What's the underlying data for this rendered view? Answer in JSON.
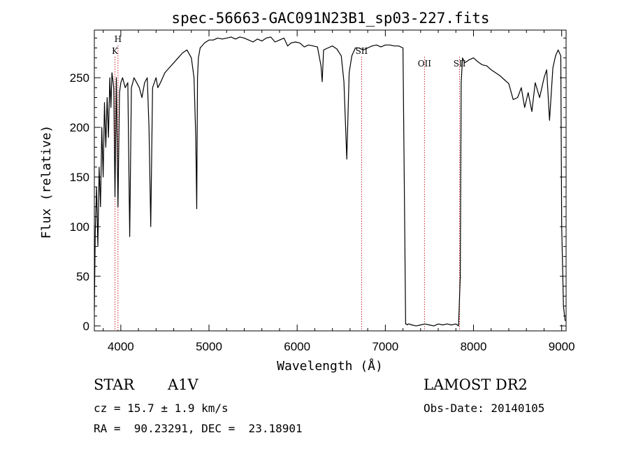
{
  "chart_data": {
    "type": "line",
    "title": "spec-56663-GAC091N23B1_sp03-227.fits",
    "xlabel": "Wavelength (Å)",
    "ylabel": "Flux (relative)",
    "xlim": [
      3700,
      9050
    ],
    "ylim": [
      -5,
      298
    ],
    "xticks": [
      4000,
      5000,
      6000,
      7000,
      8000,
      9000
    ],
    "xtick_labels": [
      "4000",
      "5000",
      "6000",
      "7000",
      "8000",
      "9000"
    ],
    "yticks": [
      0,
      50,
      100,
      150,
      200,
      250
    ],
    "ytick_labels": [
      "0",
      "50",
      "100",
      "150",
      "200",
      "250"
    ],
    "grid": false,
    "line_color": "#000000",
    "marker_color": "#cc2222",
    "lines": [
      {
        "wavelength": 3934,
        "label": "K",
        "label_row": 2
      },
      {
        "wavelength": 3968,
        "label": "H",
        "label_row": 1
      },
      {
        "wavelength": 6731,
        "label": "SII",
        "label_row": 2
      },
      {
        "wavelength": 7444,
        "label": "OII",
        "label_row": 3
      },
      {
        "wavelength": 7842,
        "label": "SII",
        "label_row": 3
      }
    ],
    "series": [
      {
        "x": [
          3700,
          3710,
          3725,
          3740,
          3755,
          3770,
          3785,
          3800,
          3815,
          3830,
          3845,
          3860,
          3875,
          3888,
          3900,
          3920,
          3934,
          3950,
          3968,
          3985,
          4000,
          4020,
          4050,
          4080,
          4101,
          4120,
          4150,
          4180,
          4210,
          4240,
          4270,
          4300,
          4320,
          4340,
          4360,
          4380,
          4400,
          4420,
          4450,
          4500,
          4550,
          4600,
          4650,
          4700,
          4750,
          4800,
          4830,
          4850,
          4861,
          4870,
          4880,
          4900,
          4950,
          5000,
          5050,
          5100,
          5150,
          5200,
          5250,
          5300,
          5350,
          5400,
          5450,
          5500,
          5550,
          5600,
          5650,
          5700,
          5750,
          5800,
          5850,
          5892,
          5930,
          5980,
          6030,
          6080,
          6130,
          6180,
          6230,
          6270,
          6284,
          6300,
          6350,
          6400,
          6450,
          6500,
          6530,
          6563,
          6590,
          6620,
          6660,
          6700,
          6750,
          6800,
          6850,
          6900,
          6950,
          7000,
          7050,
          7100,
          7150,
          7200,
          7230,
          7240,
          7250,
          7260,
          7270,
          7300,
          7350,
          7400,
          7450,
          7500,
          7550,
          7600,
          7650,
          7700,
          7750,
          7800,
          7830,
          7850,
          7860,
          7875,
          7900,
          7950,
          8000,
          8050,
          8100,
          8150,
          8200,
          8250,
          8300,
          8350,
          8400,
          8450,
          8500,
          8542,
          8580,
          8620,
          8662,
          8700,
          8750,
          8800,
          8830,
          8862,
          8900,
          8930,
          8960,
          8990,
          9000,
          9020,
          9040
        ],
        "y": [
          15,
          95,
          140,
          80,
          160,
          120,
          200,
          150,
          225,
          180,
          230,
          190,
          250,
          220,
          255,
          240,
          130,
          250,
          120,
          235,
          245,
          250,
          240,
          245,
          90,
          240,
          250,
          245,
          240,
          230,
          245,
          250,
          200,
          100,
          240,
          245,
          250,
          240,
          245,
          255,
          260,
          265,
          270,
          275,
          278,
          270,
          250,
          190,
          118,
          250,
          270,
          280,
          285,
          288,
          288,
          290,
          289,
          290,
          291,
          289,
          291,
          290,
          288,
          286,
          289,
          287,
          290,
          291,
          286,
          288,
          290,
          282,
          285,
          286,
          285,
          281,
          283,
          282,
          281,
          262,
          246,
          278,
          280,
          282,
          279,
          272,
          246,
          168,
          255,
          272,
          280,
          280,
          278,
          280,
          282,
          283,
          281,
          283,
          283,
          282,
          282,
          280,
          2,
          2,
          1,
          2,
          2,
          1,
          0,
          1,
          2,
          1,
          0,
          2,
          1,
          2,
          1,
          2,
          0,
          50,
          245,
          270,
          265,
          268,
          270,
          266,
          263,
          262,
          258,
          255,
          252,
          248,
          244,
          228,
          230,
          240,
          220,
          235,
          216,
          245,
          230,
          250,
          258,
          207,
          260,
          272,
          278,
          272,
          100,
          20,
          5
        ]
      }
    ]
  },
  "info": {
    "object_type": "STAR",
    "subclass": "A1V",
    "survey": "LAMOST DR2",
    "cz": "cz = 15.7 ± 1.9 km/s",
    "obs_date": "Obs-Date: 20140105",
    "coords": "RA =  90.23291, DEC =  23.18901"
  }
}
